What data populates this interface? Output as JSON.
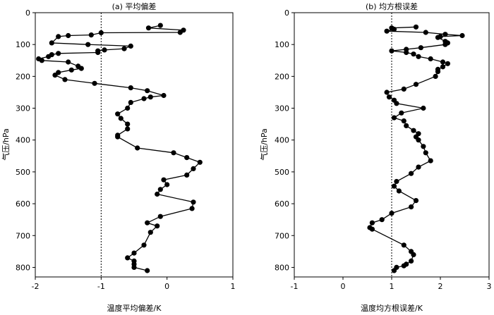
{
  "chart_data": [
    {
      "type": "line",
      "title": "(a) 平均偏差",
      "xlabel": "温度平均偏差/K",
      "ylabel": "气压/hPa",
      "xlim": [
        -2,
        1
      ],
      "ylim": [
        830,
        0
      ],
      "xticks": [
        "-2",
        "-1",
        "0",
        "1"
      ],
      "yticks": [
        "0",
        "100",
        "200",
        "300",
        "400",
        "500",
        "600",
        "700",
        "800"
      ],
      "y_inverted": true,
      "reference_line": {
        "x": -1,
        "style": "dotted"
      },
      "series": [
        {
          "x": [
            -0.1,
            -0.28,
            0.25,
            0.2,
            -1.0,
            -1.15,
            -1.5,
            -1.65,
            -1.75,
            -1.2,
            -0.55,
            -0.65,
            -0.95,
            -1.05,
            -1.05,
            -1.65,
            -1.75,
            -1.8,
            -1.95,
            -1.9,
            -1.5,
            -1.35,
            -1.3,
            -1.45,
            -1.65,
            -1.7,
            -1.55,
            -1.1,
            -0.55,
            -0.3,
            -0.05,
            -0.25,
            -0.35,
            -0.55,
            -0.6,
            -0.75,
            -0.7,
            -0.6,
            -0.6,
            -0.75,
            -0.75,
            -0.45,
            0.1,
            0.3,
            0.5,
            0.4,
            0.3,
            -0.05,
            0.0,
            -0.1,
            -0.15,
            0.4,
            0.38,
            -0.1,
            -0.3,
            -0.15,
            -0.25,
            -0.35,
            -0.5,
            -0.6,
            -0.5,
            -0.5,
            -0.5,
            -0.3
          ],
          "y": [
            40,
            48,
            55,
            62,
            63,
            70,
            72,
            75,
            95,
            100,
            105,
            113,
            117,
            120,
            125,
            128,
            132,
            138,
            145,
            150,
            155,
            168,
            175,
            180,
            188,
            196,
            210,
            222,
            236,
            245,
            260,
            265,
            270,
            282,
            300,
            318,
            332,
            350,
            365,
            385,
            390,
            425,
            440,
            455,
            470,
            490,
            510,
            525,
            540,
            555,
            570,
            595,
            615,
            640,
            660,
            670,
            690,
            730,
            755,
            770,
            780,
            790,
            800,
            810
          ]
        }
      ]
    },
    {
      "type": "line",
      "title": "(b) 均方根误差",
      "xlabel": "温度均方根误差/K",
      "ylabel": "气压/hPa",
      "xlim": [
        -1,
        3
      ],
      "ylim": [
        830,
        0
      ],
      "xticks": [
        "-1",
        "0",
        "1",
        "2",
        "3"
      ],
      "yticks": [
        "0",
        "100",
        "200",
        "300",
        "400",
        "500",
        "600",
        "700",
        "800"
      ],
      "y_inverted": true,
      "reference_line": {
        "x": 1,
        "style": "dotted"
      },
      "series": [
        {
          "x": [
            1.5,
            1.0,
            1.05,
            0.9,
            1.7,
            2.1,
            2.45,
            2.0,
            1.95,
            2.1,
            2.15,
            2.1,
            1.6,
            1.3,
            1.0,
            1.3,
            1.45,
            1.55,
            1.8,
            2.05,
            2.15,
            2.05,
            1.95,
            1.95,
            1.9,
            1.5,
            1.25,
            0.9,
            0.95,
            1.05,
            1.1,
            1.65,
            1.2,
            1.05,
            1.25,
            1.3,
            1.45,
            1.55,
            1.5,
            1.55,
            1.65,
            1.7,
            1.8,
            1.55,
            1.4,
            1.1,
            1.05,
            1.15,
            1.5,
            1.4,
            1.0,
            0.8,
            0.6,
            0.55,
            0.6,
            1.25,
            1.4,
            1.45,
            1.4,
            1.3,
            1.25,
            1.1,
            1.05
          ],
          "y": [
            45,
            48,
            52,
            58,
            62,
            68,
            72,
            75,
            78,
            90,
            95,
            100,
            110,
            115,
            120,
            125,
            130,
            138,
            145,
            155,
            160,
            170,
            178,
            185,
            200,
            225,
            240,
            250,
            265,
            275,
            285,
            300,
            315,
            330,
            340,
            355,
            370,
            380,
            390,
            400,
            420,
            440,
            465,
            485,
            505,
            530,
            545,
            560,
            590,
            610,
            630,
            650,
            660,
            675,
            680,
            730,
            750,
            760,
            780,
            790,
            795,
            800,
            810
          ]
        }
      ]
    }
  ]
}
